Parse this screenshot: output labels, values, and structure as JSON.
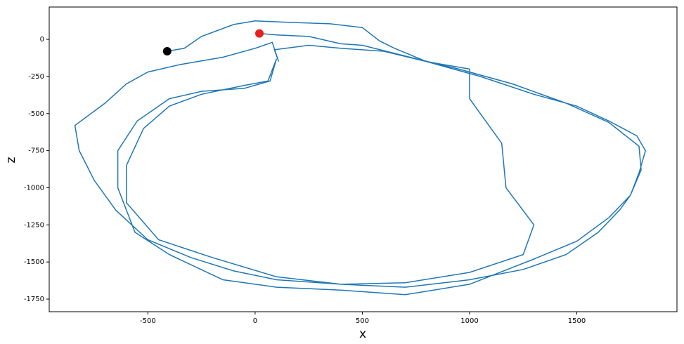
{
  "chart_data": {
    "type": "line",
    "color": "#1f77b4",
    "x_label": "x",
    "y_label": "z",
    "start_color": "#000000",
    "end_color": "#e8211f",
    "x": [
      -410,
      -330,
      -250,
      -100,
      0,
      150,
      350,
      500,
      580,
      650,
      800,
      1050,
      1300,
      1500,
      1650,
      1780,
      1820,
      1790,
      1750,
      1700,
      1600,
      1450,
      1250,
      1000,
      700,
      400,
      100,
      -100,
      -300,
      -500,
      -650,
      -750,
      -820,
      -840,
      -700,
      -600,
      -500,
      -350,
      -150,
      0,
      80,
      110,
      90,
      250,
      400,
      600,
      800,
      1000,
      1000,
      1150,
      1170,
      1300,
      1250,
      1000,
      700,
      400,
      100,
      -200,
      -450,
      -600,
      -600,
      -520,
      -400,
      -250,
      -50,
      60,
      100,
      70,
      -50,
      -250,
      -400,
      -550,
      -640,
      -640,
      -560,
      -400,
      -150,
      100,
      400,
      700,
      1000,
      1300,
      1500,
      1650,
      1750,
      1800,
      1790,
      1650,
      1450,
      1200,
      950,
      750,
      500,
      400,
      250,
      100,
      20
    ],
    "values": [
      -80,
      -60,
      20,
      100,
      125,
      115,
      105,
      80,
      -10,
      -60,
      -150,
      -250,
      -370,
      -450,
      -550,
      -650,
      -750,
      -900,
      -1050,
      -1150,
      -1300,
      -1450,
      -1550,
      -1620,
      -1670,
      -1650,
      -1620,
      -1560,
      -1470,
      -1350,
      -1150,
      -950,
      -750,
      -580,
      -430,
      -300,
      -220,
      -170,
      -120,
      -60,
      -20,
      -150,
      -70,
      -40,
      -60,
      -80,
      -150,
      -200,
      -400,
      -700,
      -1000,
      -1250,
      -1450,
      -1570,
      -1640,
      -1650,
      -1600,
      -1470,
      -1350,
      -1100,
      -850,
      -600,
      -450,
      -370,
      -310,
      -280,
      -130,
      -280,
      -330,
      -350,
      -400,
      -550,
      -750,
      -1000,
      -1300,
      -1450,
      -1620,
      -1670,
      -1690,
      -1720,
      -1650,
      -1480,
      -1360,
      -1200,
      -1050,
      -880,
      -720,
      -560,
      -430,
      -300,
      -200,
      -130,
      -40,
      -30,
      20,
      30,
      40
    ],
    "xlim": [
      -960,
      1967
    ],
    "ylim": [
      -1835,
      218
    ],
    "xticks": [
      -500,
      0,
      500,
      1000,
      1500
    ],
    "yticks": [
      0,
      -250,
      -500,
      -750,
      -1000,
      -1250,
      -1500,
      -1750
    ]
  }
}
